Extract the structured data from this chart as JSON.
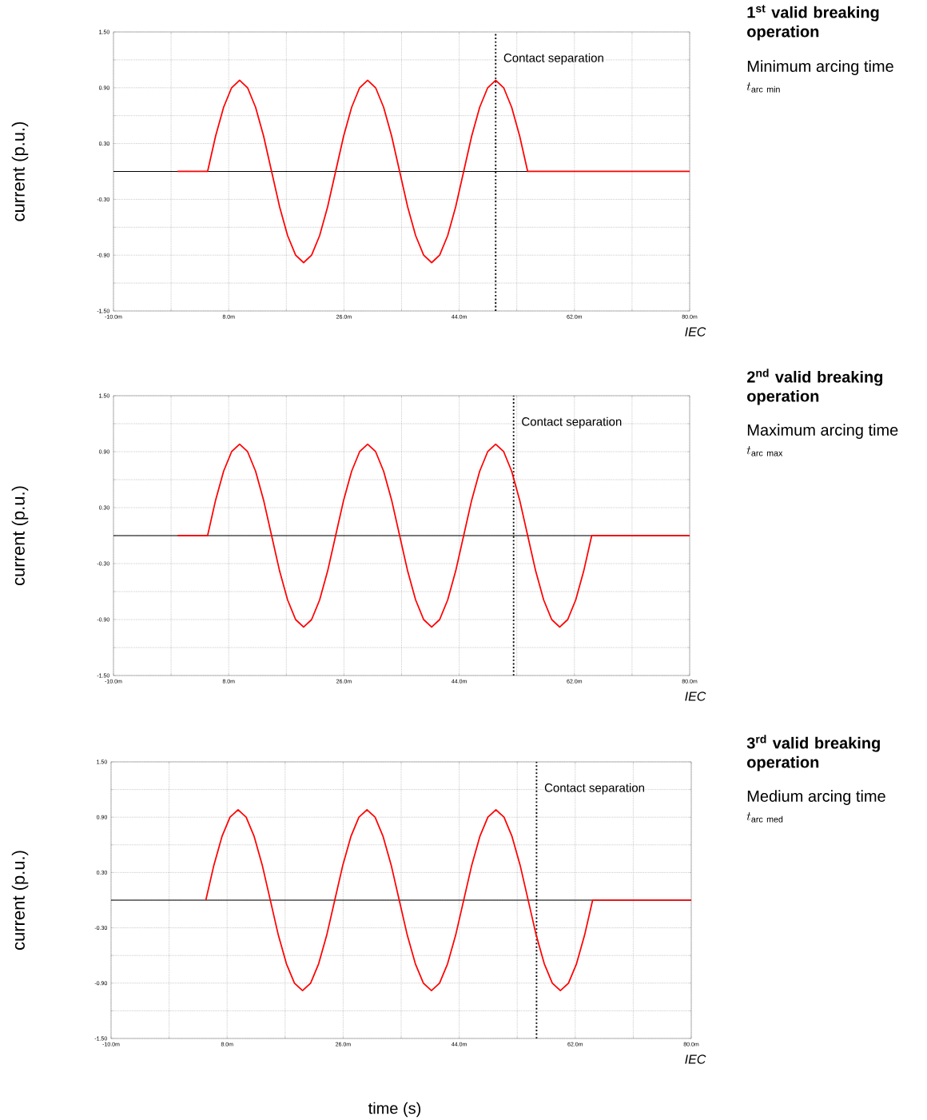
{
  "chart_data": [
    {
      "type": "line",
      "ylabel": "current (p.u.)",
      "annotations": [
        "1$^{st}$ valid breaking operation",
        "Minimum arcing time",
        "t_{\\mathrm{arc\\ min}}",
        "IEC"
      ],
      "xlim": [
        -10,
        80
      ],
      "ylim": [
        -1.5,
        1.5
      ],
      "grid": true,
      "xticks": [
        {
          "value": -10,
          "label": "-10.0m"
        },
        {
          "value": -1,
          "label": null
        },
        {
          "value": 8,
          "label": "8.0m"
        },
        {
          "value": 17,
          "label": null
        },
        {
          "value": 26,
          "label": "26.0m"
        },
        {
          "value": 35,
          "label": null
        },
        {
          "value": 44,
          "label": "44.0m"
        },
        {
          "value": 53,
          "label": null
        },
        {
          "value": 62,
          "label": "62.0m"
        },
        {
          "value": 71,
          "label": null
        },
        {
          "value": 80,
          "label": "80.0m"
        }
      ],
      "yticks": [
        {
          "value": -1.5,
          "label": "-1.50"
        },
        {
          "value": -1.2,
          "label": null
        },
        {
          "value": -0.9,
          "label": "-0.90"
        },
        {
          "value": -0.6,
          "label": null
        },
        {
          "value": -0.3,
          "label": "-0.30"
        },
        {
          "value": 0,
          "label": null
        },
        {
          "value": 0.3,
          "label": "0.30"
        },
        {
          "value": 0.6,
          "label": null
        },
        {
          "value": 0.9,
          "label": "0.90"
        },
        {
          "value": 1.2,
          "label": null
        },
        {
          "value": 1.5,
          "label": "1.50"
        }
      ],
      "ref_lines": [
        {
          "axis": "y",
          "value": 0,
          "color": "#000000",
          "line_style": "solid"
        },
        {
          "axis": "x",
          "value": 49.7,
          "label": "Contact separation",
          "color": "#000000",
          "line_style": "dotted"
        }
      ],
      "series": [
        {
          "color": "#ff0000",
          "x": [
            0,
            4.7,
            5.95,
            7.2,
            8.45,
            9.7,
            10.95,
            12.2,
            13.45,
            14.7,
            15.95,
            17.2,
            18.45,
            19.7,
            20.95,
            22.2,
            23.45,
            24.7,
            25.95,
            27.2,
            28.45,
            29.7,
            30.95,
            32.2,
            33.45,
            34.7,
            35.95,
            37.2,
            38.45,
            39.7,
            40.95,
            42.2,
            43.45,
            44.7,
            45.95,
            47.2,
            48.45,
            49.7,
            50.95,
            52.2,
            53.45,
            54.7,
            80
          ],
          "values": [
            0,
            0,
            0.38,
            0.69,
            0.9,
            0.98,
            0.9,
            0.69,
            0.38,
            0,
            -0.38,
            -0.69,
            -0.9,
            -0.98,
            -0.9,
            -0.69,
            -0.38,
            0,
            0.38,
            0.69,
            0.9,
            0.98,
            0.9,
            0.69,
            0.38,
            0,
            -0.38,
            -0.69,
            -0.9,
            -0.98,
            -0.9,
            -0.69,
            -0.38,
            0,
            0.38,
            0.69,
            0.9,
            0.98,
            0.9,
            0.69,
            0.38,
            0,
            0
          ]
        }
      ]
    },
    {
      "type": "line",
      "ylabel": "current (p.u.)",
      "annotations": [
        "2$^{nd}$ valid breaking operation",
        "Maximum arcing time",
        "t_{\\mathrm{arc\\ max}}",
        "IEC"
      ],
      "xlim": [
        -10,
        80
      ],
      "ylim": [
        -1.5,
        1.5
      ],
      "grid": true,
      "xticks": [
        {
          "value": -10,
          "label": "-10.0m"
        },
        {
          "value": -1,
          "label": null
        },
        {
          "value": 8,
          "label": "8.0m"
        },
        {
          "value": 17,
          "label": null
        },
        {
          "value": 26,
          "label": "26.0m"
        },
        {
          "value": 35,
          "label": null
        },
        {
          "value": 44,
          "label": "44.0m"
        },
        {
          "value": 53,
          "label": null
        },
        {
          "value": 62,
          "label": "62.0m"
        },
        {
          "value": 71,
          "label": null
        },
        {
          "value": 80,
          "label": "80.0m"
        }
      ],
      "yticks": [
        {
          "value": -1.5,
          "label": "-1.50"
        },
        {
          "value": -1.2,
          "label": null
        },
        {
          "value": -0.9,
          "label": "-0.90"
        },
        {
          "value": -0.6,
          "label": null
        },
        {
          "value": -0.3,
          "label": "-0.30"
        },
        {
          "value": 0,
          "label": null
        },
        {
          "value": 0.3,
          "label": "0.30"
        },
        {
          "value": 0.6,
          "label": null
        },
        {
          "value": 0.9,
          "label": "0.90"
        },
        {
          "value": 1.2,
          "label": null
        },
        {
          "value": 1.5,
          "label": "1.50"
        }
      ],
      "ref_lines": [
        {
          "axis": "y",
          "value": 0,
          "color": "#000000",
          "line_style": "solid"
        },
        {
          "axis": "x",
          "value": 52.5,
          "label": "Contact separation",
          "color": "#000000",
          "line_style": "dotted"
        }
      ],
      "series": [
        {
          "color": "#ff0000",
          "x": [
            0,
            4.7,
            5.95,
            7.2,
            8.45,
            9.7,
            10.95,
            12.2,
            13.45,
            14.7,
            15.95,
            17.2,
            18.45,
            19.7,
            20.95,
            22.2,
            23.45,
            24.7,
            25.95,
            27.2,
            28.45,
            29.7,
            30.95,
            32.2,
            33.45,
            34.7,
            35.95,
            37.2,
            38.45,
            39.7,
            40.95,
            42.2,
            43.45,
            44.7,
            45.95,
            47.2,
            48.45,
            49.7,
            50.95,
            52.2,
            53.45,
            54.7,
            55.95,
            57.2,
            58.45,
            59.7,
            60.95,
            62.2,
            63.45,
            64.7,
            80
          ],
          "values": [
            0,
            0,
            0.38,
            0.69,
            0.9,
            0.98,
            0.9,
            0.69,
            0.38,
            0,
            -0.38,
            -0.69,
            -0.9,
            -0.98,
            -0.9,
            -0.69,
            -0.38,
            0,
            0.38,
            0.69,
            0.9,
            0.98,
            0.9,
            0.69,
            0.38,
            0,
            -0.38,
            -0.69,
            -0.9,
            -0.98,
            -0.9,
            -0.69,
            -0.38,
            0,
            0.38,
            0.69,
            0.9,
            0.98,
            0.9,
            0.69,
            0.38,
            0,
            -0.38,
            -0.69,
            -0.9,
            -0.98,
            -0.9,
            -0.69,
            -0.38,
            0,
            0
          ]
        }
      ]
    },
    {
      "type": "line",
      "ylabel": "current (p.u.)",
      "xlabel": "time (s)",
      "annotations": [
        "3$^{rd}$ valid breaking operation",
        "Medium arcing time",
        "t_{\\mathrm{arc\\ med}}",
        "IEC"
      ],
      "xlim": [
        -10,
        80
      ],
      "ylim": [
        -1.5,
        1.5
      ],
      "grid": true,
      "xticks": [
        {
          "value": -10,
          "label": "-10.0m"
        },
        {
          "value": -1,
          "label": null
        },
        {
          "value": 8,
          "label": "8.0m"
        },
        {
          "value": 17,
          "label": null
        },
        {
          "value": 26,
          "label": "26.0m"
        },
        {
          "value": 35,
          "label": null
        },
        {
          "value": 44,
          "label": "44.0m"
        },
        {
          "value": 53,
          "label": null
        },
        {
          "value": 62,
          "label": "62.0m"
        },
        {
          "value": 71,
          "label": null
        },
        {
          "value": 80,
          "label": "80.0m"
        }
      ],
      "yticks": [
        {
          "value": -1.5,
          "label": "-1.50"
        },
        {
          "value": -1.2,
          "label": null
        },
        {
          "value": -0.9,
          "label": "-0.90"
        },
        {
          "value": -0.6,
          "label": null
        },
        {
          "value": -0.3,
          "label": "-0.30"
        },
        {
          "value": 0,
          "label": null
        },
        {
          "value": 0.3,
          "label": "0.30"
        },
        {
          "value": 0.6,
          "label": null
        },
        {
          "value": 0.9,
          "label": "0.90"
        },
        {
          "value": 1.2,
          "label": null
        },
        {
          "value": 1.5,
          "label": "1.50"
        }
      ],
      "ref_lines": [
        {
          "axis": "y",
          "value": 0,
          "color": "#000000",
          "line_style": "solid"
        },
        {
          "axis": "x",
          "value": 56,
          "label": "Contact separation",
          "color": "#000000",
          "line_style": "dotted"
        }
      ],
      "series": [
        {
          "color": "#ff0000",
          "x": [
            4.7,
            5.95,
            7.2,
            8.45,
            9.7,
            10.95,
            12.2,
            13.45,
            14.7,
            15.95,
            17.2,
            18.45,
            19.7,
            20.95,
            22.2,
            23.45,
            24.7,
            25.95,
            27.2,
            28.45,
            29.7,
            30.95,
            32.2,
            33.45,
            34.7,
            35.95,
            37.2,
            38.45,
            39.7,
            40.95,
            42.2,
            43.45,
            44.7,
            45.95,
            47.2,
            48.45,
            49.7,
            50.95,
            52.2,
            53.45,
            54.7,
            55.95,
            57.2,
            58.45,
            59.7,
            60.95,
            62.2,
            63.45,
            64.7,
            80
          ],
          "values": [
            0,
            0.38,
            0.69,
            0.9,
            0.98,
            0.9,
            0.69,
            0.38,
            0,
            -0.38,
            -0.69,
            -0.9,
            -0.98,
            -0.9,
            -0.69,
            -0.38,
            0,
            0.38,
            0.69,
            0.9,
            0.98,
            0.9,
            0.69,
            0.38,
            0,
            -0.38,
            -0.69,
            -0.9,
            -0.98,
            -0.9,
            -0.69,
            -0.38,
            0,
            0.38,
            0.69,
            0.9,
            0.98,
            0.9,
            0.69,
            0.38,
            0,
            -0.38,
            -0.69,
            -0.9,
            -0.98,
            -0.9,
            -0.69,
            -0.38,
            0,
            0
          ]
        }
      ]
    }
  ]
}
